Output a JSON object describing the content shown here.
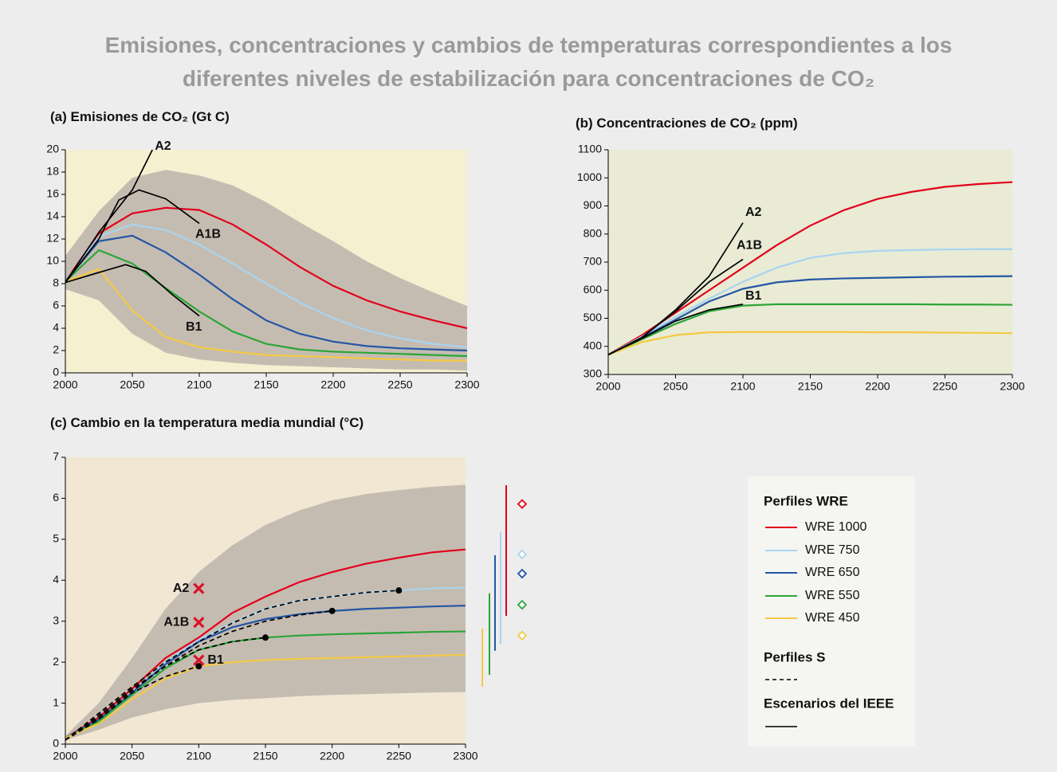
{
  "title": [
    "Emisiones, concentraciones y cambios de temperaturas correspondientes a los",
    "diferentes niveles de estabilización para concentraciones de CO₂"
  ],
  "legend": {
    "groups": [
      "Perfiles WRE",
      "Perfiles S",
      "Escenarios del IEEE"
    ]
  },
  "chart_data": [
    {
      "type": "line",
      "title": "(a) Emisiones de CO₂ (Gt C)",
      "x": [
        2000,
        2025,
        2050,
        2075,
        2100,
        2125,
        2150,
        2175,
        2200,
        2225,
        2250,
        2275,
        2300
      ],
      "xlim": [
        2000,
        2300
      ],
      "xticks": [
        2000,
        2050,
        2100,
        2150,
        2200,
        2250,
        2300
      ],
      "ylim": [
        0,
        20
      ],
      "yticks": [
        0,
        2,
        4,
        6,
        8,
        10,
        12,
        14,
        16,
        18,
        20
      ],
      "band": {
        "upper": [
          10.5,
          14.5,
          17.5,
          18.2,
          17.7,
          16.8,
          15.3,
          13.5,
          11.8,
          10.0,
          8.5,
          7.2,
          6.0
        ],
        "lower": [
          7.5,
          6.5,
          3.5,
          1.8,
          1.2,
          0.9,
          0.7,
          0.6,
          0.5,
          0.4,
          0.3,
          0.3,
          0.2
        ]
      },
      "series": [
        {
          "name": "WRE 1000",
          "color": "#e2001a",
          "values": [
            8.2,
            12.5,
            14.3,
            14.8,
            14.6,
            13.3,
            11.5,
            9.5,
            7.8,
            6.5,
            5.5,
            4.7,
            4.0
          ]
        },
        {
          "name": "WRE 750",
          "color": "#a9d4f0",
          "values": [
            8.2,
            12.2,
            13.3,
            12.8,
            11.5,
            9.8,
            8.0,
            6.3,
            4.9,
            3.8,
            3.1,
            2.6,
            2.3
          ]
        },
        {
          "name": "WRE 650",
          "color": "#2456a5",
          "values": [
            8.2,
            11.8,
            12.3,
            10.8,
            8.8,
            6.6,
            4.7,
            3.5,
            2.8,
            2.4,
            2.2,
            2.1,
            2.0
          ]
        },
        {
          "name": "WRE 550",
          "color": "#2ba538",
          "values": [
            8.2,
            11.0,
            9.8,
            7.6,
            5.5,
            3.7,
            2.6,
            2.1,
            1.9,
            1.8,
            1.7,
            1.6,
            1.5
          ]
        },
        {
          "name": "WRE 450",
          "color": "#f4c944",
          "values": [
            8.2,
            9.3,
            5.6,
            3.2,
            2.3,
            1.9,
            1.6,
            1.5,
            1.4,
            1.3,
            1.2,
            1.1,
            1.1
          ]
        },
        {
          "name": "A2",
          "color": "#000000",
          "x": [
            2000,
            2025,
            2050,
            2065
          ],
          "values": [
            8.1,
            12.6,
            16.4,
            20
          ]
        },
        {
          "name": "A1B",
          "color": "#000000",
          "x": [
            2000,
            2025,
            2040,
            2055,
            2075,
            2100
          ],
          "values": [
            8.1,
            12.0,
            15.5,
            16.4,
            15.6,
            13.4
          ]
        },
        {
          "name": "B1",
          "color": "#000000",
          "x": [
            2000,
            2025,
            2045,
            2060,
            2080,
            2100
          ],
          "values": [
            8.1,
            9.0,
            9.7,
            9.1,
            7.0,
            5.1
          ]
        }
      ]
    },
    {
      "type": "line",
      "title": "(b) Concentraciones de CO₂ (ppm)",
      "x": [
        2000,
        2025,
        2050,
        2075,
        2100,
        2125,
        2150,
        2175,
        2200,
        2225,
        2250,
        2275,
        2300
      ],
      "xlim": [
        2000,
        2300
      ],
      "xticks": [
        2000,
        2050,
        2100,
        2150,
        2200,
        2250,
        2300
      ],
      "ylim": [
        300,
        1100
      ],
      "yticks": [
        300,
        400,
        500,
        600,
        700,
        800,
        900,
        1000,
        1100
      ],
      "series": [
        {
          "color": "#e2001a",
          "values": [
            370,
            440,
            520,
            600,
            680,
            760,
            830,
            885,
            925,
            950,
            968,
            978,
            985
          ]
        },
        {
          "color": "#a9d4f0",
          "values": [
            370,
            435,
            505,
            570,
            630,
            680,
            715,
            732,
            740,
            743,
            745,
            746,
            746
          ]
        },
        {
          "color": "#2456a5",
          "values": [
            370,
            430,
            495,
            560,
            605,
            628,
            638,
            642,
            644,
            646,
            648,
            649,
            650
          ]
        },
        {
          "color": "#2ba538",
          "values": [
            370,
            425,
            480,
            525,
            545,
            550,
            550,
            550,
            550,
            550,
            549,
            549,
            548
          ]
        },
        {
          "color": "#f4c944",
          "values": [
            370,
            415,
            440,
            450,
            451,
            451,
            451,
            451,
            450,
            450,
            449,
            448,
            447
          ]
        },
        {
          "name": "A2",
          "color": "#000000",
          "x": [
            2000,
            2025,
            2050,
            2075,
            2100
          ],
          "values": [
            370,
            430,
            530,
            650,
            840
          ]
        },
        {
          "name": "A1B",
          "color": "#000000",
          "x": [
            2000,
            2025,
            2050,
            2075,
            2100
          ],
          "values": [
            370,
            432,
            525,
            630,
            710
          ]
        },
        {
          "name": "B1",
          "color": "#000000",
          "x": [
            2000,
            2025,
            2050,
            2075,
            2100
          ],
          "values": [
            370,
            428,
            490,
            530,
            550
          ]
        }
      ]
    },
    {
      "type": "line",
      "title": "(c) Cambio en la temperatura media mundial (°C)",
      "x": [
        2000,
        2025,
        2050,
        2075,
        2100,
        2125,
        2150,
        2175,
        2200,
        2225,
        2250,
        2275,
        2300
      ],
      "xlim": [
        2000,
        2300
      ],
      "xticks": [
        2000,
        2050,
        2100,
        2150,
        2200,
        2250,
        2300
      ],
      "ylim": [
        0,
        7
      ],
      "yticks": [
        0,
        1,
        2,
        3,
        4,
        5,
        6,
        7
      ],
      "band": {
        "upper": [
          0.2,
          1.0,
          2.1,
          3.3,
          4.2,
          4.85,
          5.35,
          5.7,
          5.95,
          6.1,
          6.2,
          6.28,
          6.33
        ],
        "lower": [
          0.1,
          0.35,
          0.65,
          0.85,
          1.0,
          1.08,
          1.12,
          1.17,
          1.2,
          1.22,
          1.24,
          1.26,
          1.27
        ]
      },
      "series": [
        {
          "color": "#e2001a",
          "values": [
            0.15,
            0.65,
            1.35,
            2.1,
            2.6,
            3.2,
            3.6,
            3.95,
            4.2,
            4.4,
            4.55,
            4.68,
            4.75
          ],
          "eq_range": [
            3.13,
            6.32
          ],
          "eq_value": 5.86
        },
        {
          "color": "#a9d4f0",
          "values": [
            0.15,
            0.6,
            1.25,
            2.0,
            2.55,
            2.95,
            3.3,
            3.5,
            3.6,
            3.7,
            3.75,
            3.8,
            3.82
          ],
          "eq_range": [
            2.45,
            5.17
          ],
          "eq_value": 4.63
        },
        {
          "color": "#2456a5",
          "values": [
            0.15,
            0.6,
            1.25,
            1.95,
            2.5,
            2.85,
            3.05,
            3.17,
            3.25,
            3.3,
            3.33,
            3.36,
            3.38
          ],
          "eq_range": [
            2.28,
            4.61
          ],
          "eq_value": 4.16
        },
        {
          "color": "#2ba538",
          "values": [
            0.15,
            0.55,
            1.2,
            1.85,
            2.3,
            2.5,
            2.6,
            2.65,
            2.68,
            2.7,
            2.72,
            2.74,
            2.75
          ],
          "eq_range": [
            1.69,
            3.68
          ],
          "eq_value": 3.4
        },
        {
          "color": "#f4c944",
          "values": [
            0.15,
            0.5,
            1.1,
            1.6,
            1.9,
            2.0,
            2.05,
            2.08,
            2.1,
            2.12,
            2.14,
            2.16,
            2.18
          ],
          "eq_range": [
            1.4,
            2.82
          ],
          "eq_value": 2.65
        },
        {
          "color": "#000000",
          "dash": true,
          "x": [
            2000,
            2025,
            2050,
            2075,
            2100
          ],
          "values": [
            0.1,
            0.6,
            1.25,
            1.65,
            1.9
          ]
        },
        {
          "color": "#000000",
          "dash": true,
          "x": [
            2000,
            2025,
            2050,
            2075,
            2100,
            2125,
            2150
          ],
          "values": [
            0.1,
            0.65,
            1.3,
            1.9,
            2.3,
            2.5,
            2.6
          ]
        },
        {
          "color": "#000000",
          "dash": true,
          "x": [
            2000,
            2025,
            2050,
            2075,
            2100,
            2125,
            2150,
            2175,
            2200
          ],
          "values": [
            0.1,
            0.7,
            1.35,
            1.9,
            2.4,
            2.75,
            3.0,
            3.15,
            3.25
          ]
        },
        {
          "color": "#000000",
          "dash": true,
          "x": [
            2000,
            2025,
            2050,
            2075,
            2100,
            2125,
            2150,
            2175,
            2200,
            2225,
            2250
          ],
          "values": [
            0.1,
            0.75,
            1.4,
            2.0,
            2.5,
            2.95,
            3.3,
            3.5,
            3.6,
            3.7,
            3.75
          ]
        }
      ],
      "markers": {
        "color": "#d9142a",
        "points": [
          {
            "name": "A2",
            "x": 2100,
            "value": 3.8
          },
          {
            "name": "A1B",
            "x": 2100,
            "value": 2.97
          },
          {
            "name": "B1",
            "x": 2100,
            "value": 2.05
          }
        ]
      }
    }
  ]
}
